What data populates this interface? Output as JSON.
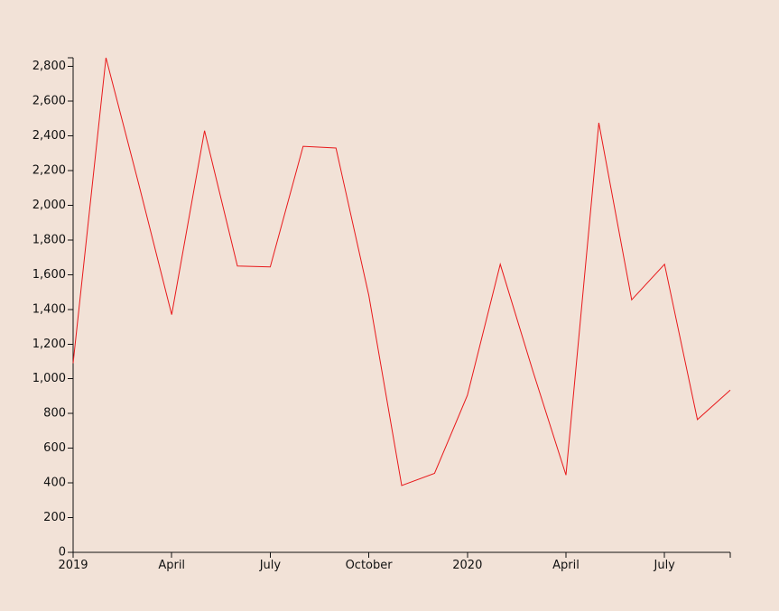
{
  "chart_data": {
    "type": "line",
    "x": [
      "2019-01",
      "2019-02",
      "2019-03",
      "2019-04",
      "2019-05",
      "2019-06",
      "2019-07",
      "2019-08",
      "2019-09",
      "2019-10",
      "2019-11",
      "2019-12",
      "2020-01",
      "2020-02",
      "2020-03",
      "2020-04",
      "2020-05",
      "2020-06",
      "2020-07",
      "2020-08",
      "2020-09"
    ],
    "series": [
      {
        "values": [
          1090,
          2850,
          2120,
          1370,
          2430,
          1650,
          1645,
          2340,
          2330,
          1480,
          385,
          455,
          905,
          1660,
          1040,
          445,
          2475,
          1455,
          1660,
          765,
          935
        ],
        "color": "#e8191b"
      }
    ],
    "x_ticks": [
      {
        "date": "2019-01",
        "label": "2019"
      },
      {
        "date": "2019-04",
        "label": "April"
      },
      {
        "date": "2019-07",
        "label": "July"
      },
      {
        "date": "2019-10",
        "label": "October"
      },
      {
        "date": "2020-01",
        "label": "2020"
      },
      {
        "date": "2020-04",
        "label": "April"
      },
      {
        "date": "2020-07",
        "label": "July"
      }
    ],
    "y_ticks": [
      {
        "value": 0,
        "label": "0"
      },
      {
        "value": 200,
        "label": "200"
      },
      {
        "value": 400,
        "label": "400"
      },
      {
        "value": 600,
        "label": "600"
      },
      {
        "value": 800,
        "label": "800"
      },
      {
        "value": 1000,
        "label": "1,000"
      },
      {
        "value": 1200,
        "label": "1,200"
      },
      {
        "value": 1400,
        "label": "1,400"
      },
      {
        "value": 1600,
        "label": "1,600"
      },
      {
        "value": 1800,
        "label": "1,800"
      },
      {
        "value": 2000,
        "label": "2,000"
      },
      {
        "value": 2200,
        "label": "2,200"
      },
      {
        "value": 2400,
        "label": "2,400"
      },
      {
        "value": 2600,
        "label": "2,600"
      },
      {
        "value": 2800,
        "label": "2,800"
      }
    ],
    "xlim": [
      "2019-01",
      "2020-09"
    ],
    "ylim": [
      0,
      2850
    ],
    "grid": false,
    "background": "#f2e2d7",
    "axis_color": "#111111"
  }
}
